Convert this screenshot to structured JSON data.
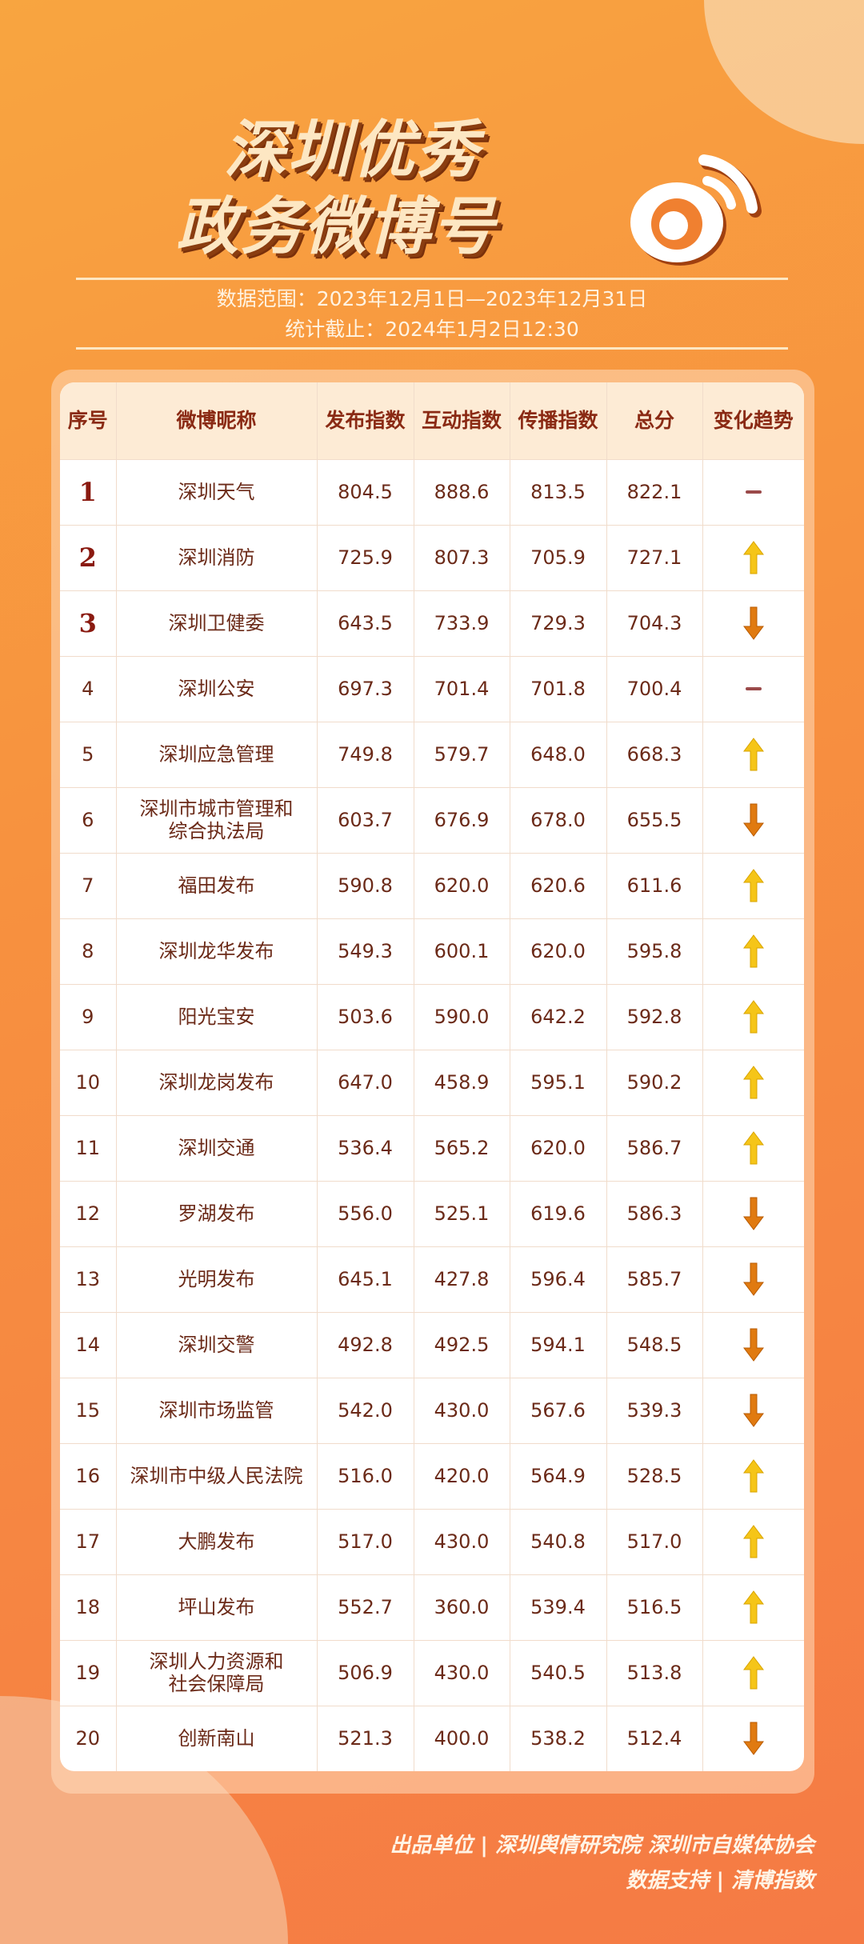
{
  "title": {
    "line1": "深圳优秀",
    "line2": "政务微博号"
  },
  "meta": {
    "range": "数据范围：2023年12月1日—2023年12月31日",
    "cutoff": "统计截止：2024年1月2日12:30"
  },
  "table": {
    "headers": [
      "序号",
      "微博昵称",
      "发布指数",
      "互动指数",
      "传播指数",
      "总分",
      "变化趋势"
    ],
    "rows": [
      {
        "rank": "1",
        "name": "深圳天气",
        "pub": "804.5",
        "inter": "888.6",
        "spread": "813.5",
        "total": "822.1",
        "trend": "none"
      },
      {
        "rank": "2",
        "name": "深圳消防",
        "pub": "725.9",
        "inter": "807.3",
        "spread": "705.9",
        "total": "727.1",
        "trend": "up"
      },
      {
        "rank": "3",
        "name": "深圳卫健委",
        "pub": "643.5",
        "inter": "733.9",
        "spread": "729.3",
        "total": "704.3",
        "trend": "down"
      },
      {
        "rank": "4",
        "name": "深圳公安",
        "pub": "697.3",
        "inter": "701.4",
        "spread": "701.8",
        "total": "700.4",
        "trend": "none"
      },
      {
        "rank": "5",
        "name": "深圳应急管理",
        "pub": "749.8",
        "inter": "579.7",
        "spread": "648.0",
        "total": "668.3",
        "trend": "up"
      },
      {
        "rank": "6",
        "name": "深圳市城市管理和\n综合执法局",
        "pub": "603.7",
        "inter": "676.9",
        "spread": "678.0",
        "total": "655.5",
        "trend": "down"
      },
      {
        "rank": "7",
        "name": "福田发布",
        "pub": "590.8",
        "inter": "620.0",
        "spread": "620.6",
        "total": "611.6",
        "trend": "up"
      },
      {
        "rank": "8",
        "name": "深圳龙华发布",
        "pub": "549.3",
        "inter": "600.1",
        "spread": "620.0",
        "total": "595.8",
        "trend": "up"
      },
      {
        "rank": "9",
        "name": "阳光宝安",
        "pub": "503.6",
        "inter": "590.0",
        "spread": "642.2",
        "total": "592.8",
        "trend": "up"
      },
      {
        "rank": "10",
        "name": "深圳龙岗发布",
        "pub": "647.0",
        "inter": "458.9",
        "spread": "595.1",
        "total": "590.2",
        "trend": "up"
      },
      {
        "rank": "11",
        "name": "深圳交通",
        "pub": "536.4",
        "inter": "565.2",
        "spread": "620.0",
        "total": "586.7",
        "trend": "up"
      },
      {
        "rank": "12",
        "name": "罗湖发布",
        "pub": "556.0",
        "inter": "525.1",
        "spread": "619.6",
        "total": "586.3",
        "trend": "down"
      },
      {
        "rank": "13",
        "name": "光明发布",
        "pub": "645.1",
        "inter": "427.8",
        "spread": "596.4",
        "total": "585.7",
        "trend": "down"
      },
      {
        "rank": "14",
        "name": "深圳交警",
        "pub": "492.8",
        "inter": "492.5",
        "spread": "594.1",
        "total": "548.5",
        "trend": "down"
      },
      {
        "rank": "15",
        "name": "深圳市场监管",
        "pub": "542.0",
        "inter": "430.0",
        "spread": "567.6",
        "total": "539.3",
        "trend": "down"
      },
      {
        "rank": "16",
        "name": "深圳市中级人民法院",
        "pub": "516.0",
        "inter": "420.0",
        "spread": "564.9",
        "total": "528.5",
        "trend": "up"
      },
      {
        "rank": "17",
        "name": "大鹏发布",
        "pub": "517.0",
        "inter": "430.0",
        "spread": "540.8",
        "total": "517.0",
        "trend": "up"
      },
      {
        "rank": "18",
        "name": "坪山发布",
        "pub": "552.7",
        "inter": "360.0",
        "spread": "539.4",
        "total": "516.5",
        "trend": "up"
      },
      {
        "rank": "19",
        "name": "深圳人力资源和\n社会保障局",
        "pub": "506.9",
        "inter": "430.0",
        "spread": "540.5",
        "total": "513.8",
        "trend": "up"
      },
      {
        "rank": "20",
        "name": "创新南山",
        "pub": "521.3",
        "inter": "400.0",
        "spread": "538.2",
        "total": "512.4",
        "trend": "down"
      }
    ]
  },
  "colors": {
    "up": "#f5c518",
    "down": "#e07a10",
    "none": "#9a4a4a"
  },
  "footer": {
    "line1": "出品单位 | 深圳舆情研究院 深圳市自媒体协会",
    "line2": "数据支持 | 清博指数"
  }
}
